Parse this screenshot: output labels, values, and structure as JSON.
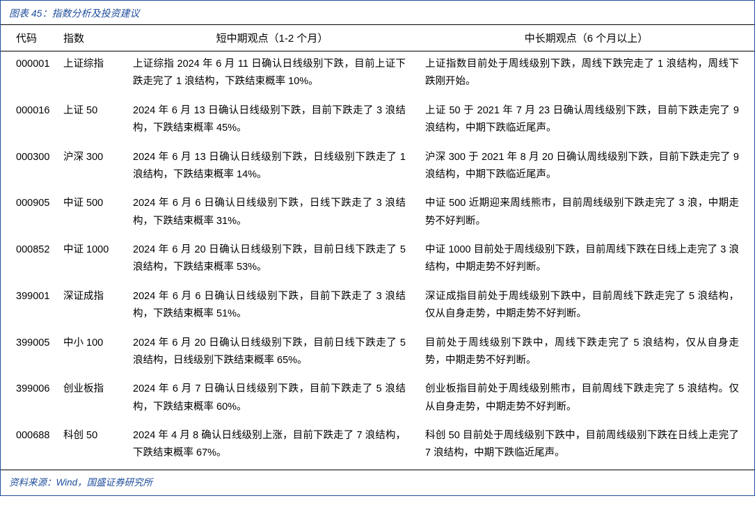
{
  "figure_title": "图表 45：指数分析及投资建议",
  "colors": {
    "accent": "#1f4e9c",
    "text": "#000000",
    "border": "#000000",
    "background": "#ffffff"
  },
  "table": {
    "columns": {
      "code": "代码",
      "index": "指数",
      "short_term": "短中期观点（1-2 个月）",
      "long_term": "中长期观点（6 个月以上）"
    },
    "rows": [
      {
        "code": "000001",
        "index": "上证综指",
        "short": "上证综指 2024 年 6 月 11 日确认日线级别下跌，目前上证下跌走完了 1 浪结构，下跌结束概率 10%。",
        "long": "上证指数目前处于周线级别下跌，周线下跌完走了 1 浪结构，周线下跌刚开始。"
      },
      {
        "code": "000016",
        "index": "上证 50",
        "short": "2024 年 6 月 13 日确认日线级别下跌，目前下跌走了 3 浪结构，下跌结束概率 45%。",
        "long": "上证 50 于 2021 年 7 月 23 日确认周线级别下跌，目前下跌走完了 9 浪结构，中期下跌临近尾声。"
      },
      {
        "code": "000300",
        "index": "沪深 300",
        "short": "2024 年 6 月 13 日确认日线级别下跌，日线级别下跌走了 1 浪结构，下跌结束概率 14%。",
        "long": "沪深 300 于 2021 年 8 月 20 日确认周线级别下跌，目前下跌走完了 9 浪结构，中期下跌临近尾声。"
      },
      {
        "code": "000905",
        "index": "中证 500",
        "short": "2024 年 6 月 6 日确认日线级别下跌，日线下跌走了 3 浪结构，下跌结束概率 31%。",
        "long": "中证 500 近期迎来周线熊市，目前周线级别下跌走完了 3 浪，中期走势不好判断。"
      },
      {
        "code": "000852",
        "index": "中证 1000",
        "short": "2024 年 6 月 20 日确认日线级别下跌，目前日线下跌走了 5 浪结构，下跌结束概率 53%。",
        "long": "中证 1000 目前处于周线级别下跌，目前周线下跌在日线上走完了 3 浪结构，中期走势不好判断。"
      },
      {
        "code": "399001",
        "index": "深证成指",
        "short": "2024 年 6 月 6 日确认日线级别下跌，目前下跌走了 3 浪结构，下跌结束概率 51%。",
        "long": "深证成指目前处于周线级别下跌中，目前周线下跌走完了 5 浪结构，仅从自身走势，中期走势不好判断。"
      },
      {
        "code": "399005",
        "index": "中小 100",
        "short": "2024 年 6 月 20 日确认日线级别下跌，目前日线下跌走了 5 浪结构，日线级别下跌结束概率 65%。",
        "long": "目前处于周线级别下跌中，周线下跌走完了 5 浪结构，仅从自身走势，中期走势不好判断。"
      },
      {
        "code": "399006",
        "index": "创业板指",
        "short": "2024 年 6 月 7 日确认日线级别下跌，目前下跌走了 5 浪结构，下跌结束概率 60%。",
        "long": "创业板指目前处于周线级别熊市，目前周线下跌走完了 5 浪结构。仅从自身走势，中期走势不好判断。"
      },
      {
        "code": "000688",
        "index": "科创 50",
        "short": "2024 年 4 月 8 确认日线级别上涨，目前下跌走了 7 浪结构，下跌结束概率 67%。",
        "long": "科创 50 目前处于周线级别下跌中，目前周线级别下跌在日线上走完了 7 浪结构，中期下跌临近尾声。"
      }
    ]
  },
  "source": "资料来源：Wind，国盛证券研究所"
}
